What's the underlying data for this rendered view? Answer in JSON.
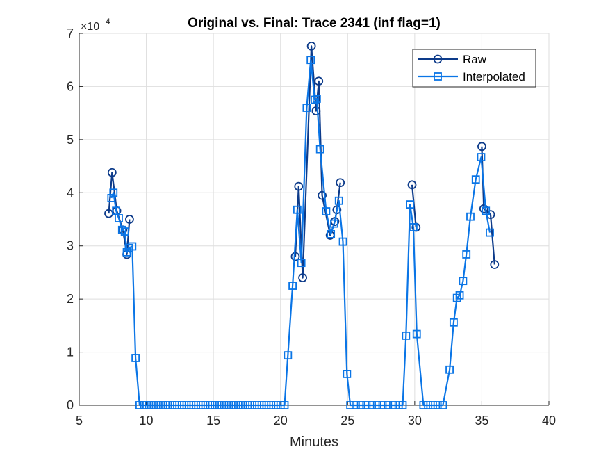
{
  "chart_data": {
    "type": "line",
    "title": "Original vs. Final: Trace 2341 (inf flag=1)",
    "xlabel": "Minutes",
    "ylabel": "",
    "xlim": [
      5,
      40
    ],
    "ylim": [
      0,
      70000
    ],
    "xticks": [
      "5",
      "10",
      "15",
      "20",
      "25",
      "30",
      "35",
      "40"
    ],
    "yticks": [
      "0",
      "1",
      "2",
      "3",
      "4",
      "5",
      "6",
      "7"
    ],
    "y_exponent_base": "×10",
    "y_exponent_power": "4",
    "grid": true,
    "legend_position": "top-right",
    "series": [
      {
        "name": "Raw",
        "color": "#0D3B8A",
        "marker": "circle",
        "segments": [
          [
            [
              7.2,
              36100
            ],
            [
              7.45,
              43800
            ],
            [
              7.8,
              36600
            ],
            [
              8.25,
              33000
            ],
            [
              8.55,
              28400
            ],
            [
              8.75,
              35000
            ]
          ],
          [
            [
              21.1,
              28000
            ],
            [
              21.35,
              41200
            ],
            [
              21.65,
              24000
            ],
            [
              22.3,
              67600
            ],
            [
              22.65,
              55400
            ],
            [
              22.85,
              61000
            ],
            [
              23.1,
              39500
            ],
            [
              23.7,
              32000
            ],
            [
              24.05,
              34600
            ],
            [
              24.2,
              36800
            ],
            [
              24.45,
              41900
            ]
          ],
          [
            [
              29.8,
              41500
            ],
            [
              30.1,
              33500
            ]
          ],
          [
            [
              35.0,
              48700
            ],
            [
              35.15,
              37000
            ],
            [
              35.65,
              35900
            ],
            [
              35.95,
              26500
            ]
          ]
        ]
      },
      {
        "name": "Interpolated",
        "color": "#0A75E6",
        "marker": "square",
        "values": [
          [
            7.4,
            39000
          ],
          [
            7.55,
            40000
          ],
          [
            7.75,
            36600
          ],
          [
            7.95,
            35200
          ],
          [
            8.2,
            33000
          ],
          [
            8.4,
            32700
          ],
          [
            8.55,
            28800
          ],
          [
            8.7,
            29600
          ],
          [
            8.95,
            29900
          ],
          [
            9.2,
            8900
          ],
          [
            9.5,
            0
          ],
          [
            9.85,
            0
          ],
          [
            10.2,
            0
          ],
          [
            10.55,
            0
          ],
          [
            10.9,
            0
          ],
          [
            11.25,
            0
          ],
          [
            11.6,
            0
          ],
          [
            11.95,
            0
          ],
          [
            12.3,
            0
          ],
          [
            12.65,
            0
          ],
          [
            13.0,
            0
          ],
          [
            13.35,
            0
          ],
          [
            13.7,
            0
          ],
          [
            14.05,
            0
          ],
          [
            14.4,
            0
          ],
          [
            14.75,
            0
          ],
          [
            15.1,
            0
          ],
          [
            15.45,
            0
          ],
          [
            15.8,
            0
          ],
          [
            16.15,
            0
          ],
          [
            16.5,
            0
          ],
          [
            16.85,
            0
          ],
          [
            17.2,
            0
          ],
          [
            17.55,
            0
          ],
          [
            17.9,
            0
          ],
          [
            18.25,
            0
          ],
          [
            18.6,
            0
          ],
          [
            18.95,
            0
          ],
          [
            19.3,
            0
          ],
          [
            19.65,
            0
          ],
          [
            20.0,
            0
          ],
          [
            20.3,
            0
          ],
          [
            20.55,
            9400
          ],
          [
            20.9,
            22500
          ],
          [
            21.25,
            36800
          ],
          [
            21.55,
            26800
          ],
          [
            21.95,
            56000
          ],
          [
            22.25,
            65000
          ],
          [
            22.55,
            57500
          ],
          [
            22.7,
            57700
          ],
          [
            22.95,
            48200
          ],
          [
            23.4,
            36500
          ],
          [
            23.75,
            32200
          ],
          [
            24.0,
            34200
          ],
          [
            24.35,
            38500
          ],
          [
            24.65,
            30800
          ],
          [
            24.95,
            5900
          ],
          [
            25.2,
            0
          ],
          [
            25.6,
            0
          ],
          [
            26.0,
            0
          ],
          [
            26.4,
            0
          ],
          [
            26.8,
            0
          ],
          [
            27.2,
            0
          ],
          [
            27.6,
            0
          ],
          [
            28.0,
            0
          ],
          [
            28.4,
            0
          ],
          [
            28.8,
            0
          ],
          [
            29.1,
            0
          ],
          [
            29.35,
            13100
          ],
          [
            29.65,
            37800
          ],
          [
            29.9,
            33500
          ],
          [
            30.15,
            13400
          ],
          [
            30.65,
            0
          ],
          [
            31.0,
            0
          ],
          [
            31.35,
            0
          ],
          [
            31.7,
            0
          ],
          [
            32.1,
            0
          ],
          [
            32.6,
            6700
          ],
          [
            32.9,
            15600
          ],
          [
            33.15,
            20200
          ],
          [
            33.35,
            20700
          ],
          [
            33.6,
            23400
          ],
          [
            33.85,
            28400
          ],
          [
            34.15,
            35500
          ],
          [
            34.55,
            42500
          ],
          [
            34.95,
            46700
          ],
          [
            35.3,
            36600
          ],
          [
            35.6,
            32500
          ]
        ]
      }
    ]
  }
}
